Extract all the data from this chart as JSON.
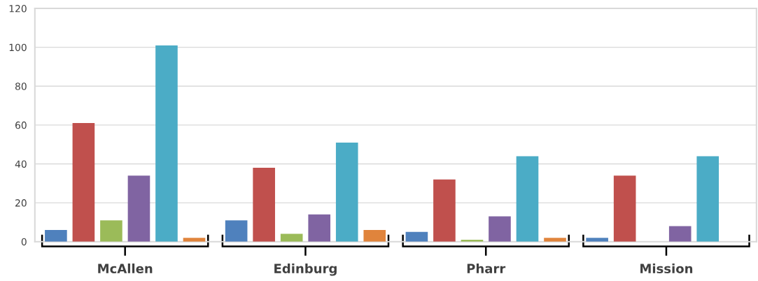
{
  "chart_data": {
    "type": "bar",
    "categories": [
      "McAllen",
      "Edinburg",
      "Pharr",
      "Mission"
    ],
    "series": [
      {
        "color": "#4f81bd",
        "values": [
          6,
          11,
          5,
          2
        ]
      },
      {
        "color": "#c0504d",
        "values": [
          61,
          38,
          32,
          34
        ]
      },
      {
        "color": "#9bbb59",
        "values": [
          11,
          4,
          1,
          null
        ]
      },
      {
        "color": "#8064a2",
        "values": [
          34,
          14,
          13,
          8
        ]
      },
      {
        "color": "#4bacc6",
        "values": [
          101,
          51,
          44,
          44
        ]
      },
      {
        "color": "#e0843c",
        "values": [
          2,
          6,
          2,
          null
        ]
      }
    ],
    "ylim": [
      0,
      120
    ],
    "yticks": [
      0,
      20,
      40,
      60,
      80,
      100,
      120
    ],
    "grid": "y"
  }
}
